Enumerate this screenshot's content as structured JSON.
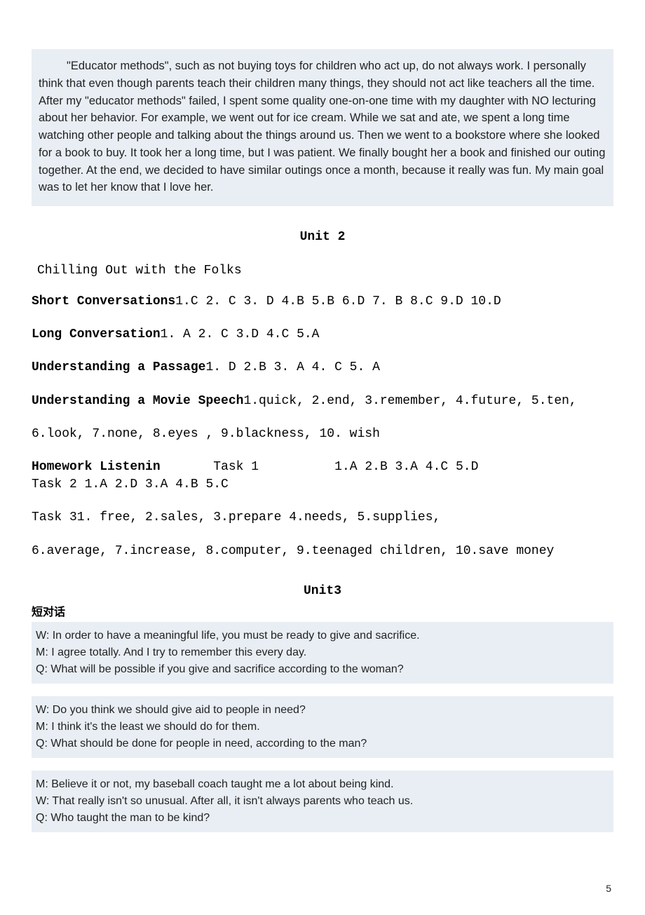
{
  "passage": {
    "text": "\"Educator methods\", such as not buying toys for children who act up, do not always work. I personally think that even though parents teach their children many things, they should not act like teachers all the time. After my \"educator methods\" failed, I spent some quality one-on-one time with my daughter with NO lecturing about her behavior. For example, we went out for ice cream. While we sat and ate, we spent a long time watching other people and talking about the things around us. Then we went to a bookstore where she looked for a book to buy. It took her a long time, but I was patient. We finally bought her a book and finished our outing together. At the end, we decided to have similar outings once a month, because it really was fun. My main goal was to let her know that I love her.",
    "background": "#e8eef4"
  },
  "unit2": {
    "title": "Unit 2",
    "subtitle": "Chilling Out with the Folks",
    "short_conv": {
      "label": "Short Conversations",
      "answers": "1.C   2. C   3. D   4.B   5.B   6.D   7. B   8.C   9.D   10.D"
    },
    "long_conv": {
      "label": "Long Conversation",
      "answers": "1. A   2. C   3.D   4.C   5.A"
    },
    "passage_u": {
      "label": "Understanding a Passage",
      "answers": "1. D   2.B   3. A   4. C   5. A"
    },
    "movie": {
      "label": "Understanding a Movie Speech",
      "line1": "1.quick, 2.end,   3.remember, 4.future,   5.ten,",
      "line2": "6.look,   7.none,   8.eyes , 9.blackness, 10. wish"
    },
    "homework": {
      "label": "Homework Listenin",
      "task1_label": "Task 1",
      "task1": "1.A   2.B   3.A   4.C   5.D",
      "task2_label": "Task 2",
      "task2": "1.A   2.D   3.A   4.B   5.C",
      "task3_line1": "Task 31. free,   2.sales,   3.prepare    4.needs,   5.supplies,",
      "task3_line2": "6.average, 7.increase, 8.computer, 9.teenaged children, 10.save money"
    }
  },
  "unit3": {
    "title": "Unit3",
    "cn_label": "短对话",
    "dialog1": {
      "w": "W: In order to have a meaningful life, you must be ready to give and sacrifice.",
      "m": "M: I agree totally. And I try to remember this every day.",
      "q": "Q: What will be possible if you give and sacrifice according to the woman?"
    },
    "dialog2": {
      "w": "W: Do you think we should give aid to people in need?",
      "m": "M: I think it's the least we should do for them.",
      "q": "Q: What should be done for people in need, according to the man?"
    },
    "dialog3": {
      "m": "M: Believe it or not, my baseball coach taught me a lot about being kind.",
      "w": "W: That really isn't so unusual.  After all, it isn't always parents who teach us.",
      "q": "Q: Who taught the man to be kind?"
    }
  },
  "page_number": "5"
}
